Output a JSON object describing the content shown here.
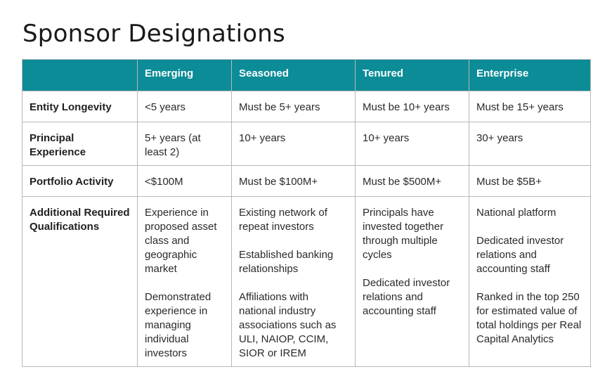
{
  "title": "Sponsor Designations",
  "headers": [
    "",
    "Emerging",
    "Seasoned",
    "Tenured",
    "Enterprise"
  ],
  "rows": [
    {
      "label": "Entity Longevity",
      "cells": [
        [
          "<5 years"
        ],
        [
          "Must be 5+ years"
        ],
        [
          "Must be 10+ years"
        ],
        [
          "Must be 15+ years"
        ]
      ]
    },
    {
      "label": "Principal Experience",
      "cells": [
        [
          "5+ years (at least 2)"
        ],
        [
          "10+ years"
        ],
        [
          "10+ years"
        ],
        [
          "30+ years"
        ]
      ]
    },
    {
      "label": "Portfolio Activity",
      "cells": [
        [
          "<$100M"
        ],
        [
          "Must be $100M+"
        ],
        [
          "Must be $500M+"
        ],
        [
          "Must be $5B+"
        ]
      ]
    },
    {
      "label": "Additional Required Qualifications",
      "cells": [
        [
          "Experience in proposed asset class and geographic market",
          "Demonstrated experience in managing individual investors"
        ],
        [
          "Existing network of repeat investors",
          "Established banking relationships",
          "Affiliations with national industry associations such as ULI, NAIOP, CCIM, SIOR or IREM"
        ],
        [
          "Principals have invested together through multiple cycles",
          "Dedicated investor relations and accounting staff"
        ],
        [
          "National platform",
          "Dedicated investor relations and accounting staff",
          "Ranked in the top 250 for estimated value of total holdings per Real Capital Analytics"
        ]
      ]
    }
  ],
  "colors": {
    "header_bg": "#0b8c97",
    "header_text": "#ffffff",
    "border": "#b9b9b9"
  }
}
